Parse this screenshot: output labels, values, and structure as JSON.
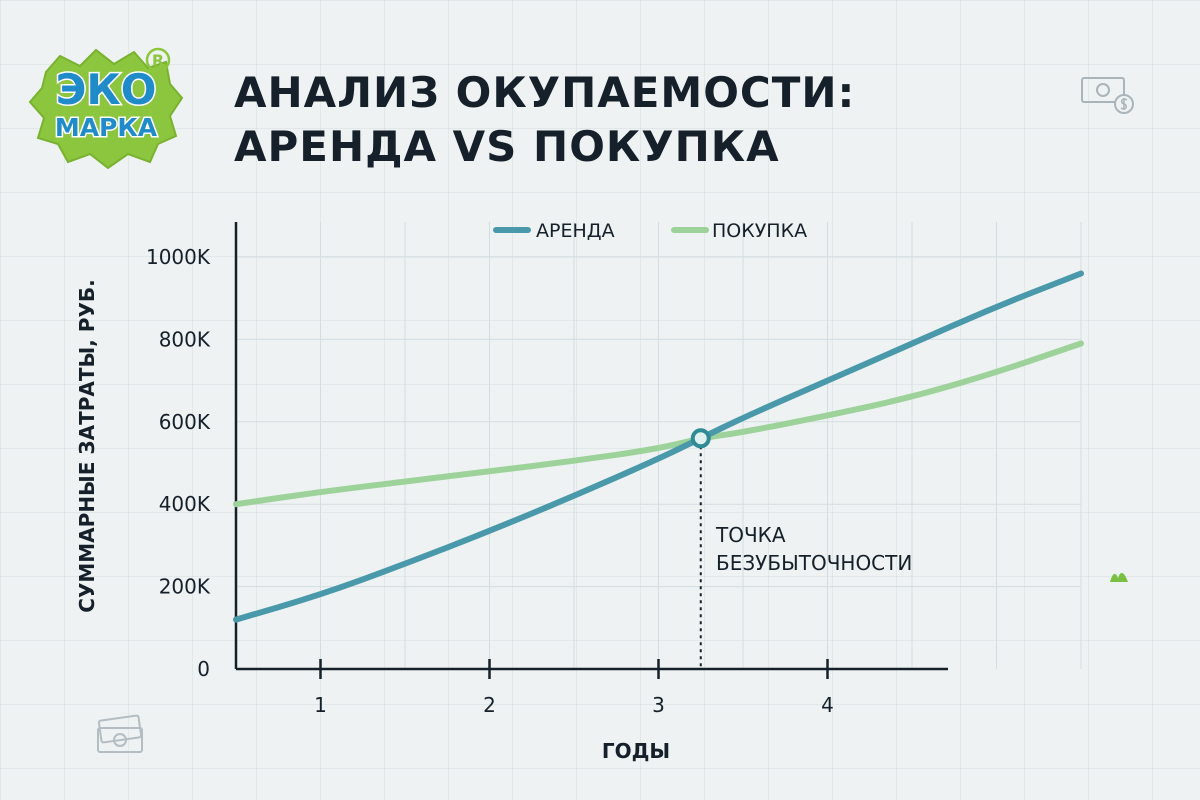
{
  "header": {
    "title_line1": "АНАЛИЗ ОКУПАЕМОСТИ:",
    "title_line2": "АРЕНДА VS ПОКУПКА"
  },
  "logo": {
    "line1": "ЭКО",
    "line2": "МАРКА",
    "registered": "R"
  },
  "colors": {
    "rent": "#4a99ab",
    "buy": "#9dd39a",
    "text": "#16202a",
    "grid": "#d3dde2",
    "logo_green": "#8cc63f",
    "logo_blue": "#1f8cc9"
  },
  "icons": [
    "money-icon",
    "leaf-icon"
  ],
  "chart_data": {
    "type": "line",
    "legend_position": "top-center",
    "xlabel": "ГОДЫ",
    "ylabel": "СУММАРНЫЕ ЗАТРАТЫ, РУБ.",
    "x_ticks": [
      1,
      2,
      3,
      4
    ],
    "x_tick_labels": [
      "1",
      "2",
      "3",
      "4"
    ],
    "y_ticks": [
      0,
      200000,
      400000,
      600000,
      800000,
      1000000
    ],
    "y_tick_labels": [
      "0",
      "200K",
      "400K",
      "600K",
      "800K",
      "1000K"
    ],
    "xlim": [
      0.5,
      5.5
    ],
    "ylim": [
      0,
      1000000
    ],
    "grid": true,
    "series": [
      {
        "name": "АРЕНДА",
        "x": [
          0.5,
          1.0,
          1.5,
          2.0,
          2.5,
          3.0,
          3.25,
          3.5,
          4.0,
          4.5,
          5.0,
          5.5
        ],
        "values": [
          120000,
          180000,
          255000,
          335000,
          420000,
          510000,
          560000,
          610000,
          700000,
          790000,
          880000,
          960000
        ]
      },
      {
        "name": "ПОКУПКА",
        "x": [
          0.5,
          1.0,
          1.5,
          2.0,
          2.5,
          3.0,
          3.25,
          3.5,
          4.0,
          4.5,
          5.0,
          5.5
        ],
        "values": [
          400000,
          430000,
          455000,
          480000,
          505000,
          535000,
          560000,
          575000,
          615000,
          660000,
          720000,
          790000
        ]
      }
    ],
    "annotations": [
      {
        "text_line1": "ТОЧКА",
        "text_line2": "БЕЗУБЫТОЧНОСТИ",
        "x": 3.25,
        "y": 560000
      }
    ]
  }
}
